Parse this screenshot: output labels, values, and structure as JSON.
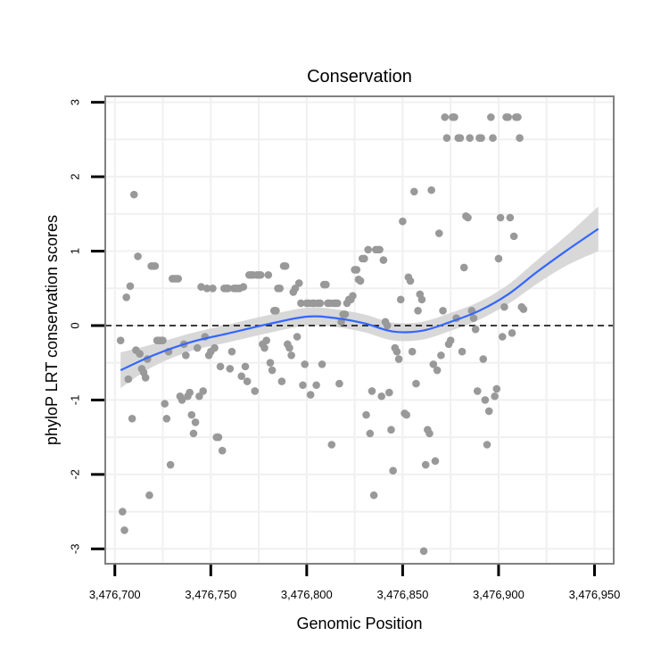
{
  "chart_data": {
    "type": "scatter",
    "title": "Conservation",
    "xlabel": "Genomic Position",
    "ylabel": "phyloP LRT conservation scores",
    "xlim": [
      3476695,
      3476960
    ],
    "ylim": [
      -3.2,
      3.08
    ],
    "x_ticks": [
      {
        "value": 3476700,
        "label": "3,476,700"
      },
      {
        "value": 3476750,
        "label": "3,476,750"
      },
      {
        "value": 3476800,
        "label": "3,476,800"
      },
      {
        "value": 3476850,
        "label": "3,476,850"
      },
      {
        "value": 3476900,
        "label": "3,476,900"
      },
      {
        "value": 3476950,
        "label": "3,476,950"
      }
    ],
    "y_ticks": [
      {
        "value": -3,
        "label": "-3"
      },
      {
        "value": -2,
        "label": "-2"
      },
      {
        "value": -1,
        "label": "-1"
      },
      {
        "value": 0,
        "label": "0"
      },
      {
        "value": 1,
        "label": "1"
      },
      {
        "value": 2,
        "label": "2"
      },
      {
        "value": 3,
        "label": "3"
      }
    ],
    "reference_line": {
      "y": 0,
      "style": "dashed"
    },
    "grid": true,
    "colors": {
      "points": "#999999",
      "smooth": "#3366ff",
      "ribbon": "#d4d4d4",
      "panel_border": "#808080"
    },
    "points": [
      [
        3476703,
        -0.2
      ],
      [
        3476704,
        -2.5
      ],
      [
        3476705,
        -2.75
      ],
      [
        3476706,
        0.38
      ],
      [
        3476707,
        -0.72
      ],
      [
        3476708,
        0.53
      ],
      [
        3476709,
        -1.25
      ],
      [
        3476710,
        1.76
      ],
      [
        3476711,
        -0.33
      ],
      [
        3476712,
        0.93
      ],
      [
        3476713,
        -0.38
      ],
      [
        3476714,
        -0.58
      ],
      [
        3476715,
        -0.63
      ],
      [
        3476716,
        -0.7
      ],
      [
        3476717,
        -0.45
      ],
      [
        3476718,
        -2.28
      ],
      [
        3476719,
        0.8
      ],
      [
        3476720,
        0.8
      ],
      [
        3476721,
        0.8
      ],
      [
        3476722,
        -0.2
      ],
      [
        3476723,
        -0.2
      ],
      [
        3476724,
        -0.2
      ],
      [
        3476725,
        -0.2
      ],
      [
        3476726,
        -1.05
      ],
      [
        3476727,
        -1.25
      ],
      [
        3476728,
        -0.35
      ],
      [
        3476729,
        -1.87
      ],
      [
        3476730,
        0.63
      ],
      [
        3476731,
        0.63
      ],
      [
        3476732,
        0.63
      ],
      [
        3476733,
        0.63
      ],
      [
        3476734,
        -0.95
      ],
      [
        3476735,
        -1.0
      ],
      [
        3476736,
        -0.25
      ],
      [
        3476737,
        -0.4
      ],
      [
        3476738,
        -0.95
      ],
      [
        3476739,
        -0.9
      ],
      [
        3476740,
        -1.2
      ],
      [
        3476741,
        -1.45
      ],
      [
        3476742,
        -1.3
      ],
      [
        3476743,
        -0.3
      ],
      [
        3476744,
        -0.95
      ],
      [
        3476745,
        0.52
      ],
      [
        3476746,
        -0.88
      ],
      [
        3476747,
        -0.15
      ],
      [
        3476748,
        0.5
      ],
      [
        3476749,
        -0.4
      ],
      [
        3476750,
        -0.35
      ],
      [
        3476751,
        0.5
      ],
      [
        3476752,
        -0.3
      ],
      [
        3476753,
        -1.5
      ],
      [
        3476754,
        -1.5
      ],
      [
        3476755,
        -0.55
      ],
      [
        3476756,
        -1.68
      ],
      [
        3476757,
        0.5
      ],
      [
        3476758,
        0.5
      ],
      [
        3476759,
        0.5
      ],
      [
        3476760,
        -0.58
      ],
      [
        3476761,
        -0.35
      ],
      [
        3476762,
        0.5
      ],
      [
        3476763,
        0.5
      ],
      [
        3476764,
        0.5
      ],
      [
        3476765,
        0.5
      ],
      [
        3476766,
        -0.68
      ],
      [
        3476767,
        0.52
      ],
      [
        3476768,
        -0.55
      ],
      [
        3476769,
        -0.75
      ],
      [
        3476770,
        0.68
      ],
      [
        3476771,
        0.68
      ],
      [
        3476772,
        0.68
      ],
      [
        3476773,
        -0.88
      ],
      [
        3476774,
        0.68
      ],
      [
        3476775,
        0.68
      ],
      [
        3476776,
        0.68
      ],
      [
        3476777,
        -0.25
      ],
      [
        3476778,
        -0.3
      ],
      [
        3476779,
        -0.2
      ],
      [
        3476780,
        0.68
      ],
      [
        3476781,
        -0.5
      ],
      [
        3476782,
        -0.6
      ],
      [
        3476783,
        0.2
      ],
      [
        3476784,
        0.2
      ],
      [
        3476785,
        0.5
      ],
      [
        3476786,
        0.5
      ],
      [
        3476787,
        -0.75
      ],
      [
        3476788,
        0.8
      ],
      [
        3476789,
        0.8
      ],
      [
        3476790,
        -0.25
      ],
      [
        3476791,
        -0.3
      ],
      [
        3476792,
        -0.4
      ],
      [
        3476793,
        0.45
      ],
      [
        3476794,
        0.5
      ],
      [
        3476795,
        -0.15
      ],
      [
        3476796,
        0.57
      ],
      [
        3476797,
        0.3
      ],
      [
        3476798,
        -0.8
      ],
      [
        3476799,
        -0.52
      ],
      [
        3476800,
        0.3
      ],
      [
        3476801,
        0.3
      ],
      [
        3476802,
        -0.93
      ],
      [
        3476803,
        0.3
      ],
      [
        3476804,
        0.3
      ],
      [
        3476805,
        -0.8
      ],
      [
        3476806,
        0.3
      ],
      [
        3476807,
        0.3
      ],
      [
        3476808,
        -0.52
      ],
      [
        3476809,
        0.55
      ],
      [
        3476810,
        0.55
      ],
      [
        3476811,
        0.3
      ],
      [
        3476812,
        0.3
      ],
      [
        3476813,
        -1.6
      ],
      [
        3476814,
        0.3
      ],
      [
        3476815,
        0.3
      ],
      [
        3476816,
        0.3
      ],
      [
        3476817,
        -0.78
      ],
      [
        3476818,
        0.05
      ],
      [
        3476819,
        0.15
      ],
      [
        3476820,
        0.15
      ],
      [
        3476821,
        0.3
      ],
      [
        3476822,
        0.35
      ],
      [
        3476823,
        0.35
      ],
      [
        3476824,
        0.4
      ],
      [
        3476825,
        0.75
      ],
      [
        3476826,
        0.75
      ],
      [
        3476827,
        0.62
      ],
      [
        3476828,
        0.6
      ],
      [
        3476829,
        0.9
      ],
      [
        3476830,
        0.9
      ],
      [
        3476831,
        -1.2
      ],
      [
        3476832,
        1.02
      ],
      [
        3476833,
        -1.45
      ],
      [
        3476834,
        -0.88
      ],
      [
        3476835,
        -2.28
      ],
      [
        3476836,
        1.02
      ],
      [
        3476837,
        1.02
      ],
      [
        3476838,
        1.02
      ],
      [
        3476839,
        -0.95
      ],
      [
        3476840,
        0.88
      ],
      [
        3476841,
        0.05
      ],
      [
        3476842,
        0.0
      ],
      [
        3476843,
        -0.9
      ],
      [
        3476844,
        -1.4
      ],
      [
        3476845,
        -1.95
      ],
      [
        3476846,
        -0.3
      ],
      [
        3476847,
        -0.35
      ],
      [
        3476848,
        -0.45
      ],
      [
        3476849,
        0.35
      ],
      [
        3476850,
        1.4
      ],
      [
        3476851,
        -1.18
      ],
      [
        3476852,
        -1.2
      ],
      [
        3476853,
        0.65
      ],
      [
        3476854,
        0.6
      ],
      [
        3476855,
        -0.35
      ],
      [
        3476856,
        1.8
      ],
      [
        3476857,
        -0.78
      ],
      [
        3476858,
        0.2
      ],
      [
        3476859,
        0.42
      ],
      [
        3476860,
        0.35
      ],
      [
        3476861,
        -3.03
      ],
      [
        3476862,
        -1.87
      ],
      [
        3476863,
        -1.4
      ],
      [
        3476864,
        -1.45
      ],
      [
        3476865,
        1.82
      ],
      [
        3476866,
        -0.52
      ],
      [
        3476867,
        -1.82
      ],
      [
        3476868,
        -0.6
      ],
      [
        3476869,
        1.24
      ],
      [
        3476870,
        -0.4
      ],
      [
        3476871,
        0.2
      ],
      [
        3476872,
        2.8
      ],
      [
        3476873,
        2.52
      ],
      [
        3476874,
        -0.25
      ],
      [
        3476875,
        -0.2
      ],
      [
        3476876,
        2.8
      ],
      [
        3476877,
        2.8
      ],
      [
        3476878,
        0.1
      ],
      [
        3476879,
        2.52
      ],
      [
        3476880,
        2.52
      ],
      [
        3476881,
        -0.35
      ],
      [
        3476882,
        0.78
      ],
      [
        3476883,
        1.47
      ],
      [
        3476884,
        1.45
      ],
      [
        3476885,
        2.52
      ],
      [
        3476886,
        0.2
      ],
      [
        3476887,
        0.1
      ],
      [
        3476888,
        -0.05
      ],
      [
        3476889,
        -0.88
      ],
      [
        3476890,
        2.52
      ],
      [
        3476891,
        2.52
      ],
      [
        3476892,
        -0.45
      ],
      [
        3476893,
        -1.0
      ],
      [
        3476894,
        -1.6
      ],
      [
        3476895,
        -1.15
      ],
      [
        3476896,
        2.8
      ],
      [
        3476897,
        2.52
      ],
      [
        3476898,
        -0.95
      ],
      [
        3476899,
        -0.85
      ],
      [
        3476900,
        0.9
      ],
      [
        3476901,
        1.45
      ],
      [
        3476902,
        -0.15
      ],
      [
        3476903,
        0.25
      ],
      [
        3476904,
        2.8
      ],
      [
        3476905,
        2.8
      ],
      [
        3476906,
        1.45
      ],
      [
        3476907,
        -0.1
      ],
      [
        3476908,
        1.2
      ],
      [
        3476909,
        2.8
      ],
      [
        3476910,
        2.8
      ],
      [
        3476911,
        2.52
      ],
      [
        3476912,
        0.25
      ],
      [
        3476913,
        0.22
      ]
    ],
    "smooth_line": [
      [
        3476703,
        -0.6
      ],
      [
        3476720,
        -0.4
      ],
      [
        3476740,
        -0.22
      ],
      [
        3476760,
        -0.1
      ],
      [
        3476780,
        0.02
      ],
      [
        3476800,
        0.12
      ],
      [
        3476815,
        0.1
      ],
      [
        3476830,
        0.03
      ],
      [
        3476845,
        -0.08
      ],
      [
        3476860,
        -0.07
      ],
      [
        3476875,
        0.05
      ],
      [
        3476890,
        0.2
      ],
      [
        3476905,
        0.42
      ],
      [
        3476920,
        0.72
      ],
      [
        3476935,
        1.0
      ],
      [
        3476952,
        1.3
      ]
    ],
    "ribbon_halfwidth": [
      [
        3476703,
        0.24
      ],
      [
        3476720,
        0.15
      ],
      [
        3476740,
        0.12
      ],
      [
        3476760,
        0.12
      ],
      [
        3476780,
        0.12
      ],
      [
        3476800,
        0.12
      ],
      [
        3476815,
        0.12
      ],
      [
        3476830,
        0.12
      ],
      [
        3476845,
        0.12
      ],
      [
        3476860,
        0.12
      ],
      [
        3476875,
        0.12
      ],
      [
        3476890,
        0.12
      ],
      [
        3476905,
        0.13
      ],
      [
        3476920,
        0.16
      ],
      [
        3476935,
        0.2
      ],
      [
        3476952,
        0.3
      ]
    ]
  }
}
